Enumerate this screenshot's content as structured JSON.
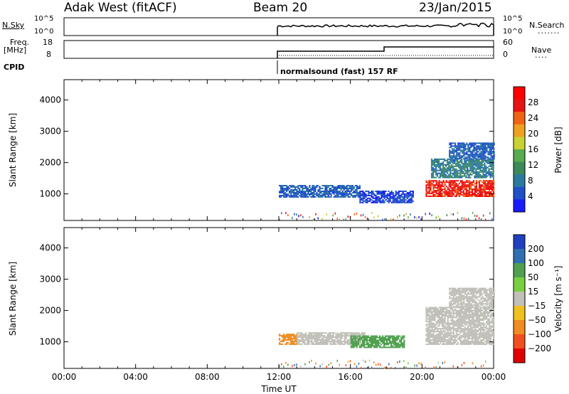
{
  "header": {
    "station": "Adak West (fitACF)",
    "beam": "Beam 20",
    "date": "23/Jan/2015"
  },
  "strip": {
    "nsky_label": "N.Sky",
    "nsky_ticks": [
      "10^5",
      "10^0"
    ],
    "nsearch_label": "N.Search",
    "nsearch_ticks": [
      "10^5",
      "10^0"
    ],
    "freq_label": "Freq.",
    "freq_unit": "[MHz]",
    "freq_ticks": [
      "18",
      "8"
    ],
    "nave_label": "Nave",
    "nave_ticks": [
      "60",
      "0"
    ],
    "cpid_label": "CPID",
    "cpid_text": "normalsound (fast) 157 RF"
  },
  "colors": {
    "power": [
      "#1a1aff",
      "#1e50c8",
      "#2a7aa0",
      "#3c8a5a",
      "#5aaa50",
      "#c8d232",
      "#f0a020",
      "#f06414",
      "#e61414",
      "#ff0000"
    ],
    "velocity": [
      "#2040c0",
      "#3070b0",
      "#50a050",
      "#78d040",
      "#c0c0b8",
      "#f0c020",
      "#f08c20",
      "#f05020",
      "#e00000"
    ]
  },
  "chart_data": [
    {
      "type": "heatmap",
      "name": "power",
      "ylabel": "Slant Range [km]",
      "xlabel": "Time UT",
      "xticks": [
        "00:00",
        "04:00",
        "08:00",
        "12:00",
        "16:00",
        "20:00",
        "00:00"
      ],
      "yticks": [
        1000,
        2000,
        3000,
        4000
      ],
      "ylim": [
        150,
        4650
      ],
      "colorbar_label": "Power [dB]",
      "colorbar_ticks": [
        4,
        8,
        12,
        16,
        20,
        24,
        28
      ],
      "colorbar_range": [
        0,
        32
      ],
      "data_start": "12:00",
      "features": [
        {
          "t0": 12.0,
          "t1": 16.5,
          "r0": 880,
          "r1": 1250,
          "level": 6
        },
        {
          "t0": 16.5,
          "t1": 19.5,
          "r0": 700,
          "r1": 1100,
          "level": 4
        },
        {
          "t0": 20.2,
          "t1": 24.0,
          "r0": 900,
          "r1": 1400,
          "level": 27
        },
        {
          "t0": 20.5,
          "t1": 24.0,
          "r0": 1500,
          "r1": 2100,
          "level": 9
        },
        {
          "t0": 21.5,
          "t1": 24.0,
          "r0": 2100,
          "r1": 2600,
          "level": 6
        }
      ]
    },
    {
      "type": "heatmap",
      "name": "velocity",
      "ylabel": "Slant Range [km]",
      "xlabel": "Time UT",
      "xticks": [
        "00:00",
        "04:00",
        "08:00",
        "12:00",
        "16:00",
        "20:00",
        "00:00"
      ],
      "yticks": [
        1000,
        2000,
        3000,
        4000
      ],
      "ylim": [
        150,
        4650
      ],
      "colorbar_label": "Velocity [m s⁻¹]",
      "colorbar_ticks": [
        "200",
        "100",
        "50",
        "15",
        "−15",
        "−50",
        "−100",
        "−200"
      ],
      "data_start": "12:00",
      "features": [
        {
          "t0": 12.0,
          "t1": 13.0,
          "r0": 900,
          "r1": 1250,
          "level": -60
        },
        {
          "t0": 13.0,
          "t1": 16.8,
          "r0": 900,
          "r1": 1300,
          "level": 0
        },
        {
          "t0": 16.0,
          "t1": 19.0,
          "r0": 800,
          "r1": 1200,
          "level": 60
        },
        {
          "t0": 20.2,
          "t1": 24.0,
          "r0": 900,
          "r1": 2100,
          "level": 0
        },
        {
          "t0": 21.5,
          "t1": 24.0,
          "r0": 2100,
          "r1": 2700,
          "level": 0
        }
      ]
    }
  ]
}
